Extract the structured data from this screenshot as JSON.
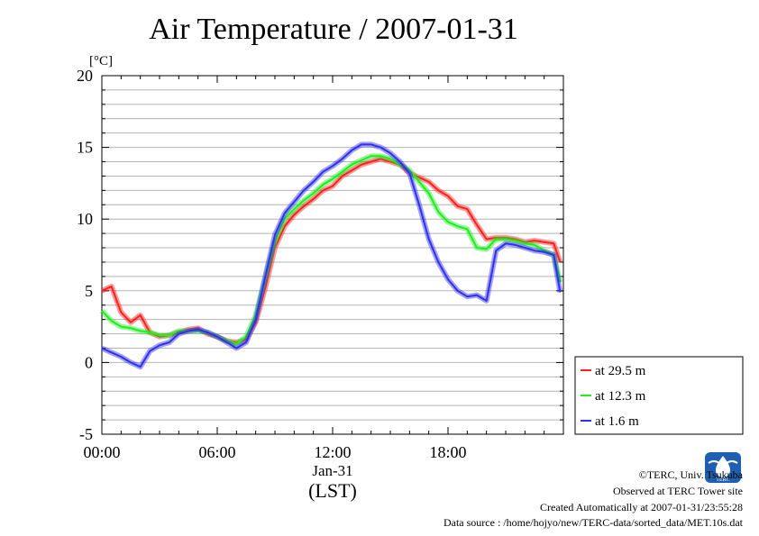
{
  "title": "Air Temperature / 2007-01-31",
  "footer": {
    "copyright": "©TERC, Univ. Tsukuba",
    "site": "Observed at TERC Tower site",
    "created": "Created Automatically at 2007-01-31/23:55:28",
    "source": "Data source : /home/hojyo/new/TERC-data/sorted_data/MET.10s.dat",
    "logo_text": "TERC"
  },
  "chart_data": {
    "type": "line",
    "title": "Air Temperature / 2007-01-31",
    "ylabel": "[°C]",
    "xlabel": "(LST)",
    "x_date_label": "Jan-31",
    "ylim": [
      -5,
      20
    ],
    "xlim": [
      "00:00",
      "24:00"
    ],
    "y_ticks": [
      -5,
      0,
      5,
      10,
      15,
      20
    ],
    "x_tick_labels": [
      "00:00",
      "06:00",
      "12:00",
      "18:00"
    ],
    "grid": true,
    "legend_position": "right",
    "x": [
      "00:00",
      "00:30",
      "01:00",
      "01:30",
      "02:00",
      "02:30",
      "03:00",
      "03:30",
      "04:00",
      "04:30",
      "05:00",
      "05:30",
      "06:00",
      "06:30",
      "07:00",
      "07:30",
      "08:00",
      "08:30",
      "09:00",
      "09:30",
      "10:00",
      "10:30",
      "11:00",
      "11:30",
      "12:00",
      "12:30",
      "13:00",
      "13:30",
      "14:00",
      "14:30",
      "15:00",
      "15:30",
      "16:00",
      "16:30",
      "17:00",
      "17:30",
      "18:00",
      "18:30",
      "19:00",
      "19:30",
      "20:00",
      "20:30",
      "21:00",
      "21:30",
      "22:00",
      "22:30",
      "23:00",
      "23:30",
      "23:50"
    ],
    "series": [
      {
        "name": "at 29.5 m",
        "color": "#ff2020",
        "values": [
          5.0,
          5.3,
          3.5,
          2.8,
          3.3,
          2.1,
          1.8,
          1.9,
          2.1,
          2.3,
          2.4,
          2.0,
          1.8,
          1.5,
          1.4,
          1.6,
          2.8,
          5.2,
          8.0,
          9.5,
          10.3,
          10.9,
          11.4,
          12.0,
          12.3,
          13.0,
          13.4,
          13.8,
          14.0,
          14.2,
          14.0,
          13.8,
          13.2,
          12.9,
          12.6,
          12.0,
          11.6,
          10.9,
          10.7,
          9.6,
          8.6,
          8.7,
          8.7,
          8.6,
          8.4,
          8.5,
          8.4,
          8.3,
          7.0
        ]
      },
      {
        "name": "at 12.3 m",
        "color": "#20ee20",
        "values": [
          3.6,
          2.9,
          2.5,
          2.4,
          2.2,
          2.1,
          1.9,
          1.9,
          2.2,
          2.2,
          2.2,
          2.1,
          1.8,
          1.5,
          1.3,
          1.8,
          3.3,
          5.9,
          8.5,
          10.0,
          10.7,
          11.3,
          11.8,
          12.4,
          12.8,
          13.3,
          13.8,
          14.1,
          14.4,
          14.4,
          14.2,
          13.8,
          13.4,
          12.6,
          11.8,
          10.5,
          9.8,
          9.5,
          9.3,
          8.0,
          7.9,
          8.6,
          8.6,
          8.5,
          8.3,
          8.2,
          7.8,
          7.5,
          5.6
        ]
      },
      {
        "name": "at 1.6 m",
        "color": "#3030ee",
        "values": [
          1.0,
          0.7,
          0.4,
          0.0,
          -0.3,
          0.8,
          1.2,
          1.4,
          2.0,
          2.2,
          2.3,
          2.1,
          1.8,
          1.4,
          1.0,
          1.4,
          3.0,
          6.0,
          8.9,
          10.4,
          11.2,
          12.0,
          12.6,
          13.3,
          13.7,
          14.2,
          14.8,
          15.2,
          15.2,
          15.0,
          14.6,
          14.0,
          13.2,
          11.0,
          8.6,
          7.0,
          5.8,
          5.0,
          4.6,
          4.7,
          4.3,
          7.8,
          8.3,
          8.2,
          8.0,
          7.8,
          7.7,
          7.5,
          4.9
        ]
      }
    ]
  }
}
